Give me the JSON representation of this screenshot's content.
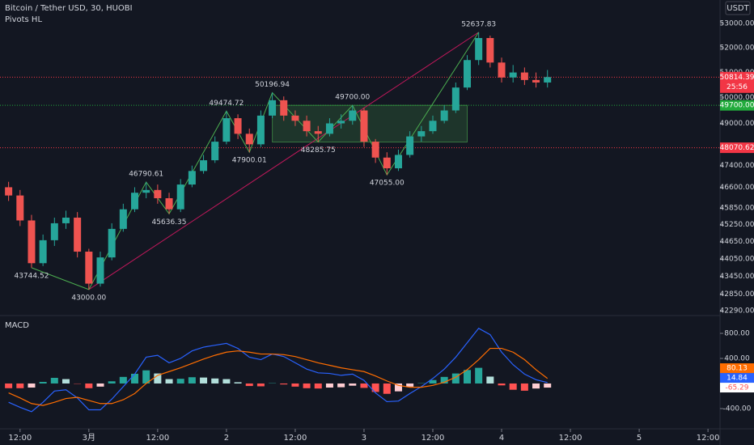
{
  "chart_data": [
    {
      "type": "candlestick",
      "title": "Bitcoin / Tether USD, 30, HUOBI",
      "subtitle": "Pivots HL",
      "currency": "USDT",
      "log_scale": true,
      "grid": false,
      "up_color": "#26a69a",
      "down_color": "#ef5350",
      "xlim": [
        -3.5,
        122.1
      ],
      "ylim": [
        42130,
        53990
      ],
      "xticks": [
        {
          "value": 0,
          "label": "12:00"
        },
        {
          "value": 12,
          "label": "3月"
        },
        {
          "value": 24,
          "label": "12:00"
        },
        {
          "value": 36,
          "label": "2"
        },
        {
          "value": 48,
          "label": "12:00"
        },
        {
          "value": 60,
          "label": "3"
        },
        {
          "value": 72,
          "label": "12:00"
        },
        {
          "value": 84,
          "label": "4"
        },
        {
          "value": 96,
          "label": "12:00"
        },
        {
          "value": 108,
          "label": "5"
        },
        {
          "value": 120,
          "label": "12:00"
        }
      ],
      "yticks": [
        {
          "value": 53000,
          "label": "53000.00"
        },
        {
          "value": 52000,
          "label": "52000.00"
        },
        {
          "value": 51000,
          "label": "51000.00"
        },
        {
          "value": 50000,
          "label": "50000.00"
        },
        {
          "value": 49000,
          "label": "49000.00"
        },
        {
          "value": 47400,
          "label": "47400.00"
        },
        {
          "value": 46600,
          "label": "46600.00"
        },
        {
          "value": 45850,
          "label": "45850.00"
        },
        {
          "value": 45250,
          "label": "45250.00"
        },
        {
          "value": 44650,
          "label": "44650.00"
        },
        {
          "value": 44050,
          "label": "44050.00"
        },
        {
          "value": 43450,
          "label": "43450.00"
        },
        {
          "value": 42850,
          "label": "42850.00"
        },
        {
          "value": 42290,
          "label": "42290.00"
        }
      ],
      "x": [
        -2,
        0,
        2,
        4,
        6,
        8,
        10,
        12,
        14,
        16,
        18,
        20,
        22,
        24,
        26,
        28,
        30,
        32,
        34,
        36,
        38,
        40,
        42,
        44,
        46,
        48,
        50,
        52,
        54,
        56,
        58,
        60,
        62,
        64,
        66,
        68,
        70,
        72,
        74,
        76,
        78,
        80,
        82,
        84,
        86,
        88,
        90,
        92
      ],
      "open": [
        46600,
        46300,
        45400,
        43900,
        44700,
        45300,
        45500,
        44300,
        43200,
        44100,
        45100,
        45800,
        46400,
        46500,
        46200,
        45800,
        46700,
        47200,
        47600,
        48300,
        49200,
        48600,
        48200,
        49300,
        49900,
        49300,
        49100,
        48700,
        48600,
        49000,
        49100,
        49500,
        48300,
        47700,
        47300,
        47800,
        48500,
        48700,
        49100,
        49500,
        50400,
        51500,
        52400,
        51400,
        50800,
        51000,
        50700,
        50600
      ],
      "high": [
        46800,
        46500,
        45600,
        44900,
        45500,
        45750,
        45700,
        44400,
        44300,
        45300,
        46000,
        46600,
        46790.61,
        46700,
        46400,
        46900,
        47400,
        47800,
        48500,
        49474.72,
        49350,
        48800,
        49500,
        50196.94,
        50050,
        49500,
        49300,
        48900,
        49200,
        49350,
        49700,
        49600,
        48400,
        47900,
        48000,
        48700,
        48900,
        49300,
        49700,
        50600,
        51700,
        52637.83,
        52500,
        51600,
        51300,
        51200,
        51000,
        51100
      ],
      "low": [
        46100,
        45200,
        43744.52,
        43800,
        44500,
        45100,
        44100,
        43000,
        43100,
        44000,
        45000,
        45700,
        46200,
        46000,
        45636.35,
        45700,
        46600,
        47100,
        47500,
        48200,
        48400,
        47900.01,
        48100,
        49200,
        49100,
        48900,
        48500,
        48285.75,
        48500,
        48800,
        48950,
        48100,
        47500,
        47055,
        47200,
        47700,
        48300,
        48600,
        49000,
        49400,
        50300,
        51300,
        51200,
        50600,
        50600,
        50500,
        50400,
        50400
      ],
      "close": [
        46300,
        45400,
        43900,
        44700,
        45300,
        45500,
        44300,
        43200,
        44100,
        45100,
        45800,
        46400,
        46500,
        46200,
        45800,
        46700,
        47200,
        47600,
        48300,
        49200,
        48600,
        48200,
        49300,
        49900,
        49300,
        49100,
        48700,
        48600,
        49000,
        49100,
        49500,
        48300,
        47700,
        47300,
        47800,
        48500,
        48700,
        49100,
        49500,
        50400,
        51500,
        52400,
        51400,
        50800,
        51000,
        50700,
        50600,
        50814.39
      ],
      "pivots": {
        "color": "#4caf50",
        "trend_color": "#c2185b",
        "x": [
          2,
          12,
          22,
          26,
          36,
          40,
          44,
          52,
          58,
          64,
          80
        ],
        "values": [
          43744.52,
          43000,
          46790.61,
          45636.35,
          49474.72,
          47900.01,
          50196.94,
          48285.75,
          49700,
          47055,
          52637.83
        ],
        "value_labels": [
          "43744.52",
          "43000.00",
          "46790.61",
          "45636.35",
          "49474.72",
          "47900.01",
          "50196.94",
          "48285.75",
          "49700.00",
          "47055.00",
          "52637.83"
        ],
        "side": [
          "below",
          "below",
          "above",
          "below",
          "above",
          "below",
          "above",
          "below",
          "above",
          "below",
          "above"
        ]
      },
      "zone": {
        "x": [
          44,
          78
        ],
        "values": [
          48285.75,
          49700
        ],
        "color": "#4caf50"
      },
      "price_lines": [
        {
          "value": 50814.39,
          "label": "50814.39",
          "countdown": "25:56",
          "color": "#f23645"
        },
        {
          "value": 49700,
          "label": "49700.00",
          "color": "#22ab3c"
        },
        {
          "value": 48070.62,
          "label": "48070.62",
          "color": "#f23645"
        }
      ]
    },
    {
      "type": "macd",
      "title": "MACD",
      "ylim": [
        -723,
        1058
      ],
      "yticks": [
        {
          "value": 800,
          "label": "800.00"
        },
        {
          "value": 400,
          "label": "400.00"
        },
        {
          "value": -400,
          "label": "-400.00"
        }
      ],
      "x": [
        -2,
        0,
        2,
        4,
        6,
        8,
        10,
        12,
        14,
        16,
        18,
        20,
        22,
        24,
        26,
        28,
        30,
        32,
        34,
        36,
        38,
        40,
        42,
        44,
        46,
        48,
        50,
        52,
        54,
        56,
        58,
        60,
        62,
        64,
        66,
        68,
        70,
        72,
        74,
        76,
        78,
        80,
        82,
        84,
        86,
        88,
        90,
        92
      ],
      "series": [
        {
          "color": "#2962ff",
          "values": [
            -300,
            -380,
            -450,
            -300,
            -120,
            -100,
            -230,
            -420,
            -420,
            -250,
            -50,
            150,
            420,
            450,
            330,
            400,
            520,
            580,
            610,
            640,
            560,
            420,
            380,
            470,
            430,
            330,
            230,
            170,
            160,
            130,
            150,
            50,
            -150,
            -290,
            -280,
            -160,
            -50,
            80,
            230,
            420,
            650,
            880,
            780,
            500,
            300,
            150,
            60,
            14.84
          ]
        },
        {
          "color": "#ff6d00",
          "values": [
            -150,
            -230,
            -320,
            -350,
            -300,
            -240,
            -220,
            -270,
            -320,
            -320,
            -260,
            -160,
            0,
            130,
            190,
            250,
            320,
            390,
            450,
            500,
            520,
            500,
            470,
            470,
            460,
            430,
            380,
            330,
            290,
            250,
            220,
            190,
            120,
            40,
            -30,
            -60,
            -60,
            -30,
            20,
            100,
            220,
            380,
            560,
            560,
            500,
            380,
            220,
            80.13
          ]
        }
      ],
      "histogram": {
        "colors": [
          "#26a69a",
          "#b2dfdb",
          "#ffcdd2",
          "#ff5252"
        ],
        "values": [
          -75,
          -75,
          -65,
          25,
          90,
          70,
          -5,
          -75,
          -50,
          35,
          105,
          155,
          210,
          160,
          70,
          75,
          100,
          95,
          80,
          70,
          20,
          -40,
          -45,
          5,
          -15,
          -50,
          -75,
          -80,
          -65,
          -60,
          -35,
          -70,
          -135,
          -165,
          -125,
          -50,
          5,
          55,
          105,
          160,
          215,
          250,
          110,
          -30,
          -100,
          -115,
          -80,
          -65.29
        ]
      }
    }
  ]
}
